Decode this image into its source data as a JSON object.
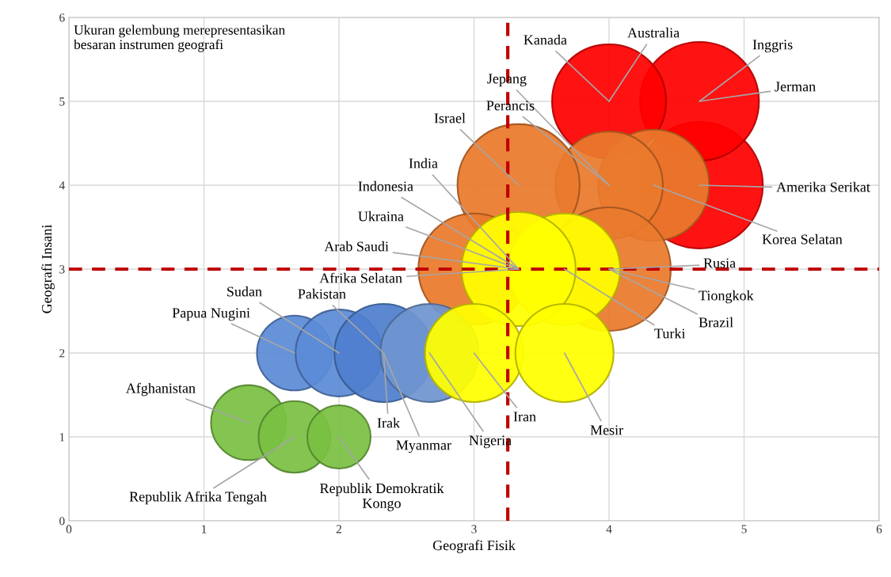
{
  "chart_data": {
    "type": "bubble",
    "xlabel": "Geografi Fisik",
    "ylabel": "Geografi Insani",
    "xlim": [
      0,
      6
    ],
    "ylim": [
      0,
      6
    ],
    "xticks": [
      0,
      1,
      2,
      3,
      4,
      5,
      6
    ],
    "yticks": [
      0,
      1,
      2,
      3,
      4,
      5,
      6
    ],
    "grid": true,
    "legend": false,
    "ref_lines": [
      {
        "axis": "x",
        "value": 3.25,
        "color": "#c00000",
        "line_style": "dashed"
      },
      {
        "axis": "y",
        "value": 3,
        "color": "#c00000",
        "line_style": "dashed"
      }
    ],
    "x": [
      4.67,
      4.67,
      4,
      4.33,
      4,
      3.33,
      4,
      3,
      3.67,
      3.33,
      1.67,
      2,
      2.33,
      2.67,
      3,
      3.67,
      1.33,
      1.67,
      2
    ],
    "values": [
      4,
      5,
      5,
      4,
      4,
      4,
      3,
      3,
      3,
      3,
      2,
      2,
      2,
      2,
      2,
      2,
      1.17,
      1,
      1
    ],
    "sizes": [
      1,
      0.88,
      0.81,
      0.77,
      0.72,
      0.93,
      0.95,
      0.77,
      0.77,
      0.81,
      0.35,
      0.47,
      0.6,
      0.6,
      0.6,
      0.6,
      0.35,
      0.32,
      0.25
    ],
    "colors": [
      "#ff0000",
      "#ff0000",
      "#ff0000",
      "#e97a2c",
      "#e97a2c",
      "#e97a2c",
      "#e97a2c",
      "#e97a2c",
      "#ffff00",
      "#ffff00",
      "#5b8bd6",
      "#5b8bd6",
      "#4f7fce",
      "#6f95d0",
      "#ffff00",
      "#ffff00",
      "#7ac143",
      "#7ac143",
      "#7ac143"
    ],
    "annotations": [
      "Ukuran gelembung merepresentasikan\nbesaran instrumen geografi",
      {
        "text": "Amerika Serikat",
        "x": 4.67,
        "y": 4
      },
      {
        "text": "Inggris",
        "x": 4.67,
        "y": 5
      },
      {
        "text": "Jerman",
        "x": 4.67,
        "y": 5
      },
      {
        "text": "Kanada",
        "x": 4,
        "y": 5
      },
      {
        "text": "Australia",
        "x": 4,
        "y": 5
      },
      {
        "text": "Korea Selatan",
        "x": 4.33,
        "y": 4
      },
      {
        "text": "Jepang",
        "x": 4,
        "y": 4
      },
      {
        "text": "Perancis",
        "x": 4,
        "y": 4
      },
      {
        "text": "Israel",
        "x": 3.33,
        "y": 4
      },
      {
        "text": "Rusia",
        "x": 4,
        "y": 3
      },
      {
        "text": "Tiongkok",
        "x": 4,
        "y": 3
      },
      {
        "text": "Brazil",
        "x": 4,
        "y": 3
      },
      {
        "text": "Arab Saudi",
        "x": 3.33,
        "y": 3
      },
      {
        "text": "India",
        "x": 3.33,
        "y": 3
      },
      {
        "text": "Turki",
        "x": 3.67,
        "y": 3
      },
      {
        "text": "Indonesia",
        "x": 3.33,
        "y": 3
      },
      {
        "text": "Ukraina",
        "x": 3.33,
        "y": 3
      },
      {
        "text": "Afrika Selatan",
        "x": 3.33,
        "y": 3
      },
      {
        "text": "Papua Nugini",
        "x": 1.67,
        "y": 2
      },
      {
        "text": "Sudan",
        "x": 2,
        "y": 2
      },
      {
        "text": "Pakistan",
        "x": 2.33,
        "y": 2
      },
      {
        "text": "Irak",
        "x": 2.33,
        "y": 2
      },
      {
        "text": "Myanmar",
        "x": 2.33,
        "y": 2
      },
      {
        "text": "Nigeria",
        "x": 2.67,
        "y": 2
      },
      {
        "text": "Iran",
        "x": 3,
        "y": 2
      },
      {
        "text": "Mesir",
        "x": 3.67,
        "y": 2
      },
      {
        "text": "Afghanistan",
        "x": 1.33,
        "y": 1.17
      },
      {
        "text": "Republik Afrika Tengah",
        "x": 1.67,
        "y": 1
      },
      {
        "text": "Republik Demokratik\nKongo",
        "x": 2,
        "y": 1
      }
    ]
  }
}
